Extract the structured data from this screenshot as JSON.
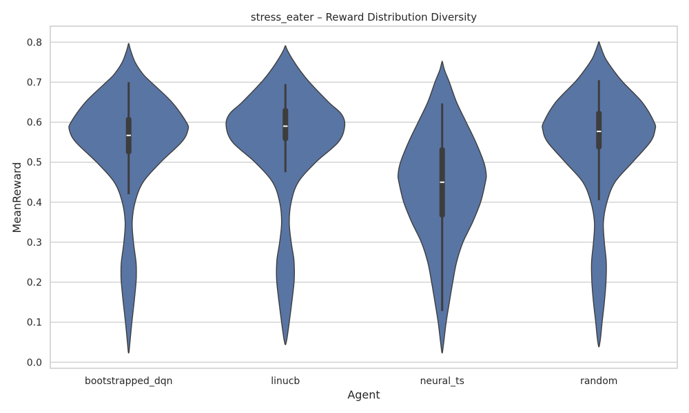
{
  "chart_data": {
    "type": "violin",
    "title": "stress_eater – Reward Distribution Diversity",
    "xlabel": "Agent",
    "ylabel": "MeanReward",
    "categories": [
      "bootstrapped_dqn",
      "linucb",
      "neural_ts",
      "random"
    ],
    "ylim": [
      -0.015,
      0.84
    ],
    "yticks": [
      "0.0",
      "0.1",
      "0.2",
      "0.3",
      "0.4",
      "0.5",
      "0.6",
      "0.7",
      "0.8"
    ],
    "grid": true,
    "colors": {
      "fill": "#5975a4",
      "outline": "#3d3d3d",
      "box": "#3d3d3d",
      "median": "#ffffff",
      "grid": "#cccccc",
      "frame": "#cccccc"
    },
    "violins": [
      {
        "name": "bootstrapped_dqn",
        "kde_min": 0.025,
        "kde_max": 0.795,
        "q1": 0.52,
        "median": 0.567,
        "q3": 0.613,
        "whisker_low": 0.42,
        "whisker_high": 0.7,
        "profile": [
          [
            0.025,
            0.002
          ],
          [
            0.05,
            0.008
          ],
          [
            0.1,
            0.02
          ],
          [
            0.15,
            0.034
          ],
          [
            0.2,
            0.046
          ],
          [
            0.22,
            0.048
          ],
          [
            0.25,
            0.046
          ],
          [
            0.3,
            0.03
          ],
          [
            0.35,
            0.022
          ],
          [
            0.4,
            0.04
          ],
          [
            0.45,
            0.09
          ],
          [
            0.5,
            0.2
          ],
          [
            0.55,
            0.33
          ],
          [
            0.58,
            0.37
          ],
          [
            0.6,
            0.36
          ],
          [
            0.65,
            0.27
          ],
          [
            0.7,
            0.14
          ],
          [
            0.72,
            0.09
          ],
          [
            0.75,
            0.04
          ],
          [
            0.78,
            0.012
          ],
          [
            0.795,
            0.002
          ]
        ]
      },
      {
        "name": "linucb",
        "kde_min": 0.045,
        "kde_max": 0.79,
        "q1": 0.553,
        "median": 0.59,
        "q3": 0.635,
        "whisker_low": 0.475,
        "whisker_high": 0.695,
        "profile": [
          [
            0.045,
            0.002
          ],
          [
            0.06,
            0.01
          ],
          [
            0.1,
            0.024
          ],
          [
            0.15,
            0.04
          ],
          [
            0.2,
            0.054
          ],
          [
            0.23,
            0.056
          ],
          [
            0.26,
            0.052
          ],
          [
            0.3,
            0.036
          ],
          [
            0.35,
            0.024
          ],
          [
            0.4,
            0.036
          ],
          [
            0.45,
            0.08
          ],
          [
            0.5,
            0.19
          ],
          [
            0.55,
            0.33
          ],
          [
            0.59,
            0.37
          ],
          [
            0.62,
            0.35
          ],
          [
            0.65,
            0.27
          ],
          [
            0.7,
            0.15
          ],
          [
            0.73,
            0.09
          ],
          [
            0.76,
            0.04
          ],
          [
            0.78,
            0.012
          ],
          [
            0.79,
            0.002
          ]
        ]
      },
      {
        "name": "neural_ts",
        "kde_min": 0.025,
        "kde_max": 0.75,
        "q1": 0.362,
        "median": 0.45,
        "q3": 0.537,
        "whisker_low": 0.128,
        "whisker_high": 0.647,
        "profile": [
          [
            0.025,
            0.002
          ],
          [
            0.05,
            0.01
          ],
          [
            0.1,
            0.025
          ],
          [
            0.15,
            0.045
          ],
          [
            0.2,
            0.066
          ],
          [
            0.25,
            0.09
          ],
          [
            0.3,
            0.13
          ],
          [
            0.35,
            0.19
          ],
          [
            0.4,
            0.24
          ],
          [
            0.45,
            0.27
          ],
          [
            0.47,
            0.275
          ],
          [
            0.5,
            0.26
          ],
          [
            0.55,
            0.21
          ],
          [
            0.6,
            0.15
          ],
          [
            0.65,
            0.09
          ],
          [
            0.7,
            0.045
          ],
          [
            0.73,
            0.015
          ],
          [
            0.75,
            0.002
          ]
        ]
      },
      {
        "name": "random",
        "kde_min": 0.04,
        "kde_max": 0.8,
        "q1": 0.532,
        "median": 0.577,
        "q3": 0.628,
        "whisker_low": 0.405,
        "whisker_high": 0.705,
        "profile": [
          [
            0.04,
            0.002
          ],
          [
            0.06,
            0.01
          ],
          [
            0.1,
            0.02
          ],
          [
            0.15,
            0.034
          ],
          [
            0.2,
            0.044
          ],
          [
            0.25,
            0.046
          ],
          [
            0.3,
            0.034
          ],
          [
            0.35,
            0.028
          ],
          [
            0.4,
            0.05
          ],
          [
            0.45,
            0.1
          ],
          [
            0.5,
            0.21
          ],
          [
            0.55,
            0.32
          ],
          [
            0.58,
            0.35
          ],
          [
            0.6,
            0.345
          ],
          [
            0.65,
            0.27
          ],
          [
            0.7,
            0.15
          ],
          [
            0.73,
            0.09
          ],
          [
            0.76,
            0.04
          ],
          [
            0.79,
            0.01
          ],
          [
            0.8,
            0.002
          ]
        ]
      }
    ]
  }
}
